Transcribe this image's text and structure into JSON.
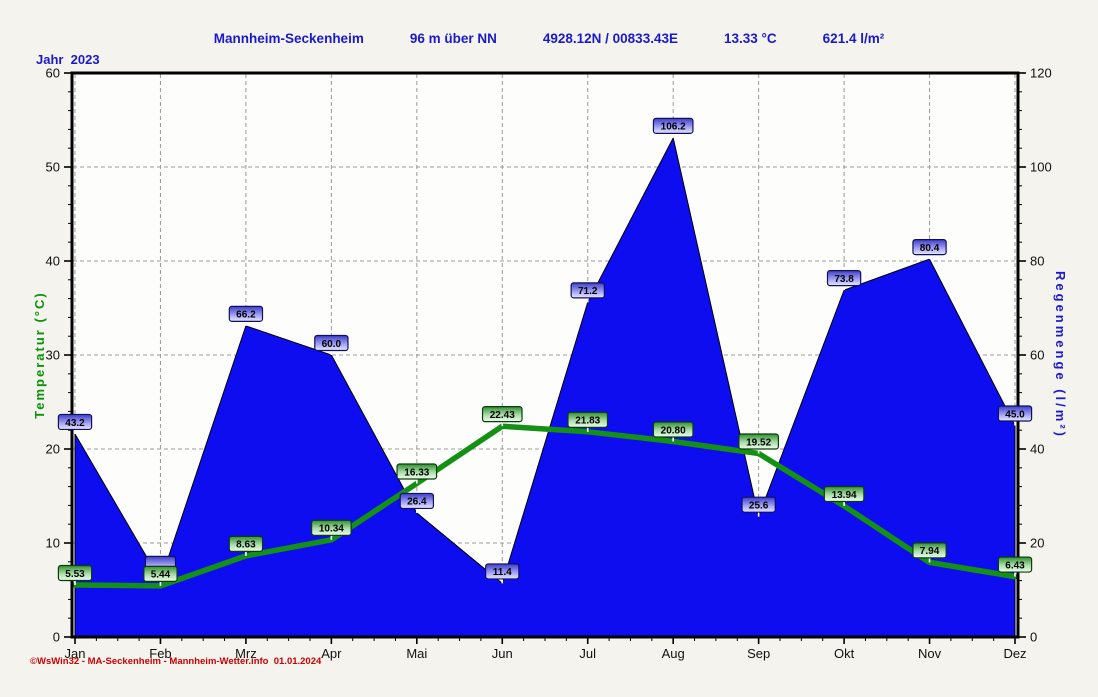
{
  "header": {
    "title_segments": [
      "Mannheim-Seckenheim",
      "96 m über NN",
      "4928.12N / 00833.43E",
      "13.33 °C",
      "621.4 l/m²"
    ],
    "year_label": "Jahr  2023"
  },
  "footer": {
    "copyright": "©WsWin32 - MA-Seckenheim - Mannheim-Wetter.info  01.01.2024"
  },
  "chart_data": {
    "type": "area",
    "title": "Mannheim-Seckenheim 96 m über NN 4928.12N / 00833.43E 13.33 °C 621.4 l/m²",
    "categories": [
      "Jan",
      "Feb",
      "Mrz",
      "Apr",
      "Mai",
      "Jun",
      "Jul",
      "Aug",
      "Sep",
      "Okt",
      "Nov",
      "Dez"
    ],
    "series": [
      {
        "name": "Regenmenge",
        "type": "area",
        "axis": "right",
        "color": "#0d0df0",
        "values": [
          43.2,
          12.0,
          66.2,
          60.0,
          26.4,
          11.4,
          71.2,
          106.2,
          25.6,
          73.8,
          80.4,
          45.0
        ],
        "labels": [
          "43.2",
          "",
          "66.2",
          "60.0",
          "26.4",
          "11.4",
          "71.2",
          "106.2",
          "25.6",
          "73.8",
          "80.4",
          "45.0"
        ]
      },
      {
        "name": "Temperatur",
        "type": "line",
        "axis": "left",
        "color": "#149114",
        "values": [
          5.53,
          5.44,
          8.63,
          10.34,
          16.33,
          22.43,
          21.83,
          20.8,
          19.52,
          13.94,
          7.94,
          6.43
        ],
        "labels": [
          "5.53",
          "5.44",
          "8.63",
          "10.34",
          "16.33",
          "22.43",
          "21.83",
          "20.80",
          "19.52",
          "13.94",
          "7.94",
          "6.43"
        ]
      }
    ],
    "left_axis": {
      "label": "Temperatur  (°C)",
      "min": 0,
      "max": 60,
      "major_step": 10,
      "minor_step": 2,
      "ticks": [
        "0",
        "10",
        "20",
        "30",
        "40",
        "50",
        "60"
      ],
      "color": "#089308"
    },
    "right_axis": {
      "label": "Regenmenge  (l/m²)",
      "min": 0,
      "max": 120,
      "major_step": 20,
      "minor_step": 4,
      "ticks": [
        "0",
        "20",
        "40",
        "60",
        "80",
        "100",
        "120"
      ],
      "color": "#1a1ad0"
    },
    "grid": "dashed",
    "legend_position": "none"
  }
}
